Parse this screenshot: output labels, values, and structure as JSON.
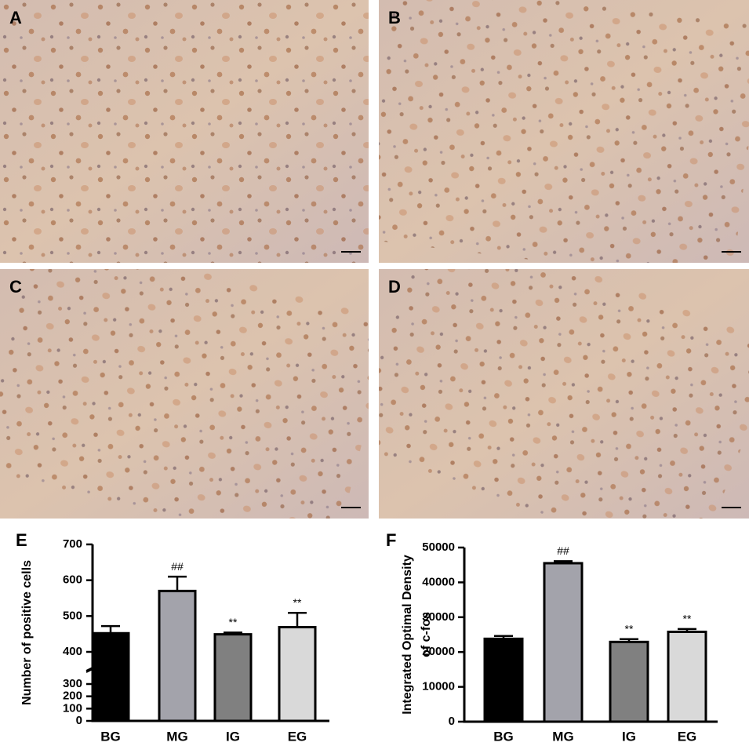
{
  "micrographs": [
    {
      "label": "A"
    },
    {
      "label": "B"
    },
    {
      "label": "C"
    },
    {
      "label": "D"
    }
  ],
  "chart_data": [
    {
      "type": "bar",
      "panel": "E",
      "y_label": "Number of positive cells",
      "categories": [
        "BG",
        "MG",
        "IG",
        "EG"
      ],
      "values": [
        452,
        570,
        449,
        469
      ],
      "errors": [
        20,
        40,
        5,
        40
      ],
      "significance": [
        null,
        "##",
        "**",
        "**"
      ],
      "colors": [
        "#000000",
        "#a3a3ab",
        "#808080",
        "#d9d9d9"
      ],
      "segments": [
        {
          "ylim": [
            0,
            300
          ],
          "yticks": [
            0,
            100,
            200,
            300
          ]
        },
        {
          "ylim": [
            400,
            700
          ],
          "yticks": [
            400,
            500,
            600,
            700
          ]
        }
      ]
    },
    {
      "type": "bar",
      "panel": "F",
      "y_label": [
        "Integrated Optimal Density",
        "of c-fos"
      ],
      "categories": [
        "BG",
        "MG",
        "IG",
        "EG"
      ],
      "values": [
        23800,
        45500,
        22900,
        25800
      ],
      "errors": [
        800,
        600,
        800,
        800
      ],
      "significance": [
        null,
        "##",
        "**",
        "**"
      ],
      "colors": [
        "#000000",
        "#a3a3ab",
        "#808080",
        "#d9d9d9"
      ],
      "segments": [
        {
          "ylim": [
            0,
            50000
          ],
          "yticks": [
            0,
            10000,
            20000,
            30000,
            40000,
            50000
          ]
        }
      ]
    }
  ]
}
